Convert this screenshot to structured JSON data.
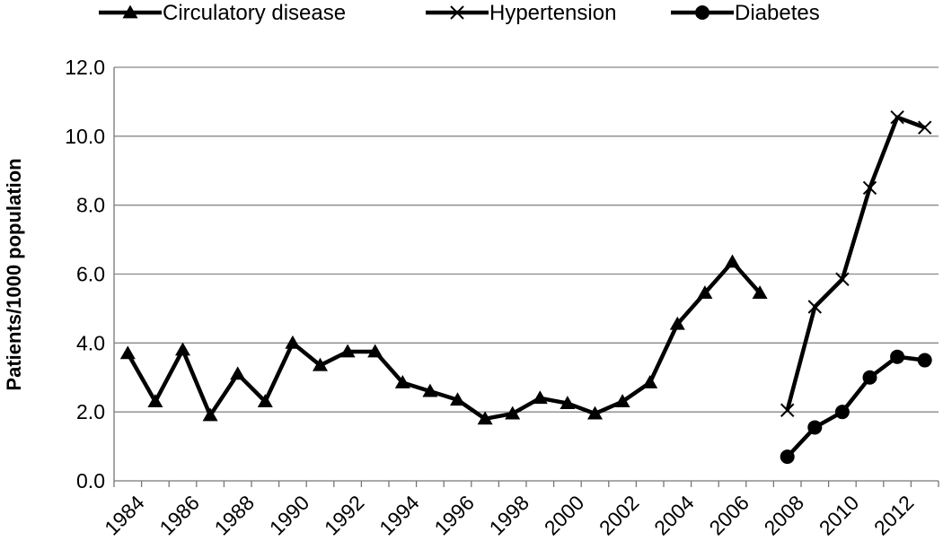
{
  "chart_data": {
    "type": "line",
    "title": "",
    "xlabel": "",
    "ylabel": "Patients/1000 population",
    "ylim": [
      0,
      12
    ],
    "yticks": [
      "0.0",
      "2.0",
      "4.0",
      "6.0",
      "8.0",
      "10.0",
      "12.0"
    ],
    "xlim": [
      1984,
      2013
    ],
    "xticks": [
      "1984",
      "1986",
      "1988",
      "1990",
      "1992",
      "1994",
      "1996",
      "1998",
      "2000",
      "2002",
      "2004",
      "2006",
      "2008",
      "2010",
      "2012"
    ],
    "grid": "horizontal",
    "legend_position": "top",
    "series": [
      {
        "name": "Circulatory disease",
        "marker": "triangle",
        "x": [
          1984,
          1985,
          1986,
          1987,
          1988,
          1989,
          1990,
          1991,
          1992,
          1993,
          1994,
          1995,
          1996,
          1997,
          1998,
          1999,
          2000,
          2001,
          2002,
          2003,
          2004,
          2005,
          2006,
          2007
        ],
        "values": [
          3.7,
          2.3,
          3.8,
          1.9,
          3.1,
          2.3,
          4.0,
          3.35,
          3.75,
          3.75,
          2.85,
          2.6,
          2.35,
          1.8,
          1.95,
          2.4,
          2.25,
          1.95,
          2.3,
          2.85,
          4.55,
          5.45,
          6.35,
          5.45
        ]
      },
      {
        "name": "Hypertension",
        "marker": "x",
        "x": [
          2008,
          2009,
          2010,
          2011,
          2012,
          2013
        ],
        "values": [
          2.05,
          5.05,
          5.85,
          8.5,
          10.55,
          10.25
        ]
      },
      {
        "name": "Diabetes",
        "marker": "circle",
        "x": [
          2008,
          2009,
          2010,
          2011,
          2012,
          2013
        ],
        "values": [
          0.7,
          1.55,
          2.0,
          3.0,
          3.6,
          3.5
        ]
      }
    ],
    "colors": {
      "line": "#000000",
      "grid": "#888888",
      "background": "#ffffff"
    }
  }
}
